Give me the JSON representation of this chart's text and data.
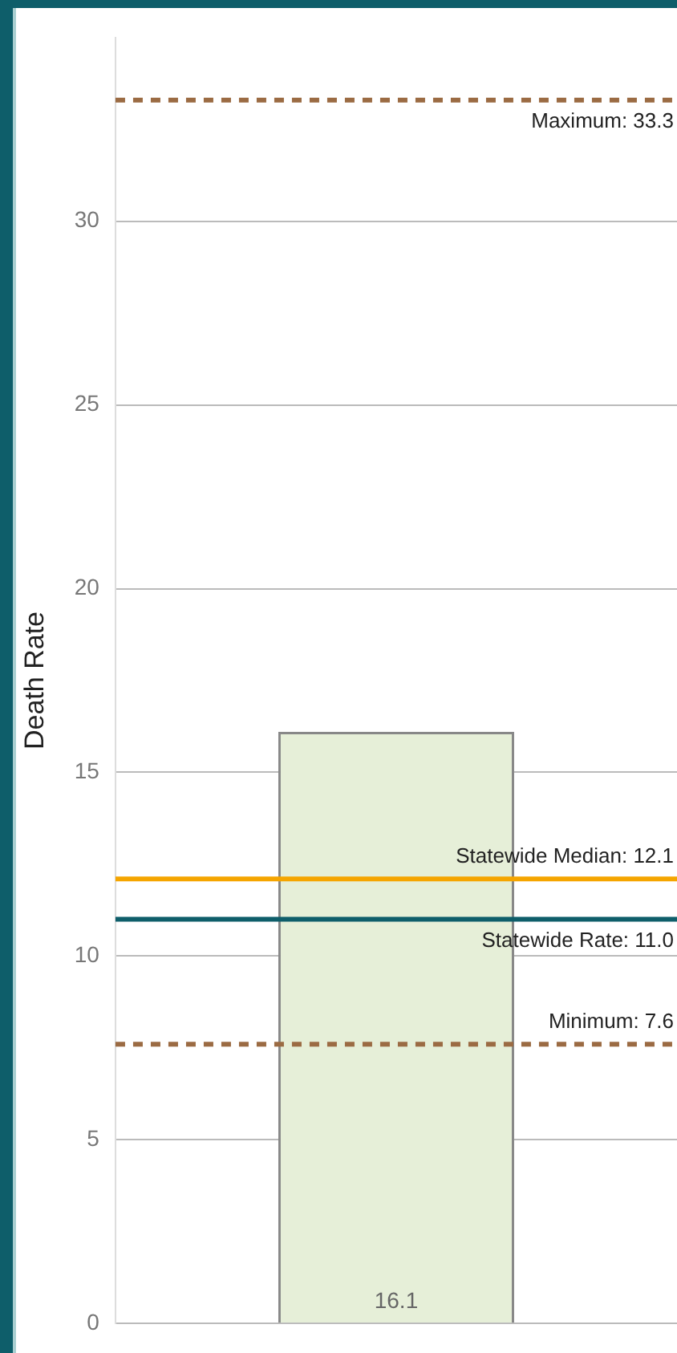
{
  "chart_data": {
    "type": "bar",
    "ylabel": "Death Rate",
    "categories": [
      null
    ],
    "values": [
      16.1
    ],
    "color": "#e6efd8",
    "ylim": [
      0,
      35
    ],
    "yticks": [
      0,
      5,
      10,
      15,
      20,
      25,
      30
    ],
    "grid": "y",
    "tick_labels": "y",
    "data_labels": true,
    "legend": false,
    "ref_lines": [
      {
        "axis": "y",
        "value": 33.3,
        "label": "Maximum: 33.3",
        "color": "#9b6b43",
        "line_style": "dashed"
      },
      {
        "axis": "y",
        "value": 12.1,
        "label": "Statewide Median: 12.1",
        "color": "#f5a500",
        "line_style": "solid"
      },
      {
        "axis": "y",
        "value": 11.0,
        "label": "Statewide Rate: 11.0",
        "color": "#0e5e6a",
        "line_style": "solid"
      },
      {
        "axis": "y",
        "value": 7.6,
        "label": "Minimum: 7.6",
        "color": "#9b6b43",
        "line_style": "dashed"
      }
    ]
  }
}
